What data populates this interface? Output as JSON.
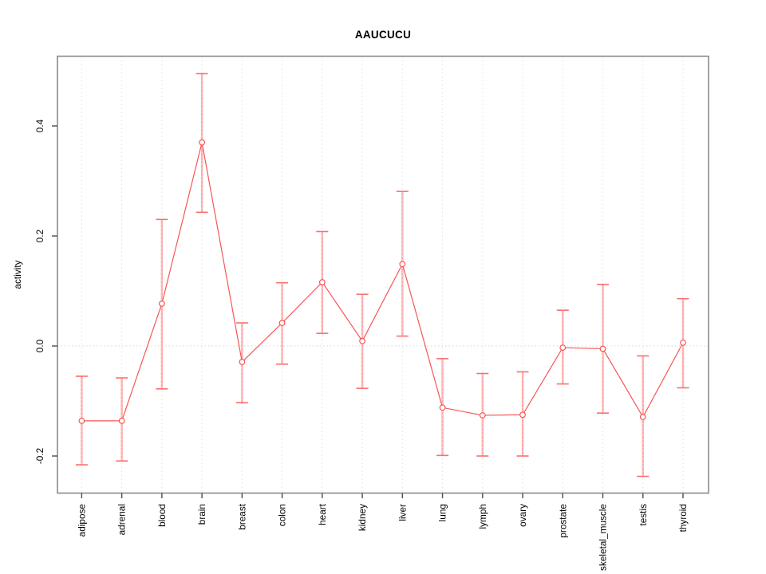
{
  "chart_data": {
    "type": "line",
    "title": "AAUCUCU",
    "xlabel": "",
    "ylabel": "activity",
    "legend": "none",
    "marker": "open-circle",
    "grid": {
      "vertical_dotted": true,
      "horizontal_zero_dotted": true
    },
    "categories": [
      "adipose",
      "adrenal",
      "blood",
      "brain",
      "breast",
      "colon",
      "heart",
      "kidney",
      "liver",
      "lung",
      "lymph",
      "ovary",
      "prostate",
      "skeletal_muscle",
      "testis",
      "thyroid"
    ],
    "series": [
      {
        "name": "activity",
        "values": [
          -0.136,
          -0.136,
          0.077,
          0.37,
          -0.029,
          0.042,
          0.116,
          0.009,
          0.149,
          -0.112,
          -0.126,
          -0.125,
          -0.003,
          -0.005,
          -0.129,
          0.006
        ],
        "error_low": [
          -0.216,
          -0.209,
          -0.078,
          0.243,
          -0.103,
          -0.033,
          0.023,
          -0.077,
          0.018,
          -0.199,
          -0.2,
          -0.2,
          -0.069,
          -0.122,
          -0.237,
          -0.076
        ],
        "error_high": [
          -0.055,
          -0.058,
          0.23,
          0.495,
          0.042,
          0.115,
          0.208,
          0.094,
          0.281,
          -0.023,
          -0.05,
          -0.047,
          0.065,
          0.112,
          -0.018,
          0.086
        ]
      }
    ],
    "ylim": [
      -0.267,
      0.527
    ],
    "yticks": [
      {
        "value": -0.2,
        "label": "-0.2"
      },
      {
        "value": 0.0,
        "label": "0.0"
      },
      {
        "value": 0.2,
        "label": "0.2"
      },
      {
        "value": 0.4,
        "label": "0.4"
      }
    ],
    "colors": {
      "line": "#f85555",
      "marker": "#f84f4f",
      "marker_fill": "#ffffff",
      "error_stem": "#ffaaaa",
      "error_cap": "#fa6e6e",
      "grid": "#e1e1e1",
      "zero_line": "#dedede",
      "box": "#8a8a8a",
      "tick": "#4d4d4d",
      "text": "#000000",
      "background": "#ffffff"
    }
  }
}
